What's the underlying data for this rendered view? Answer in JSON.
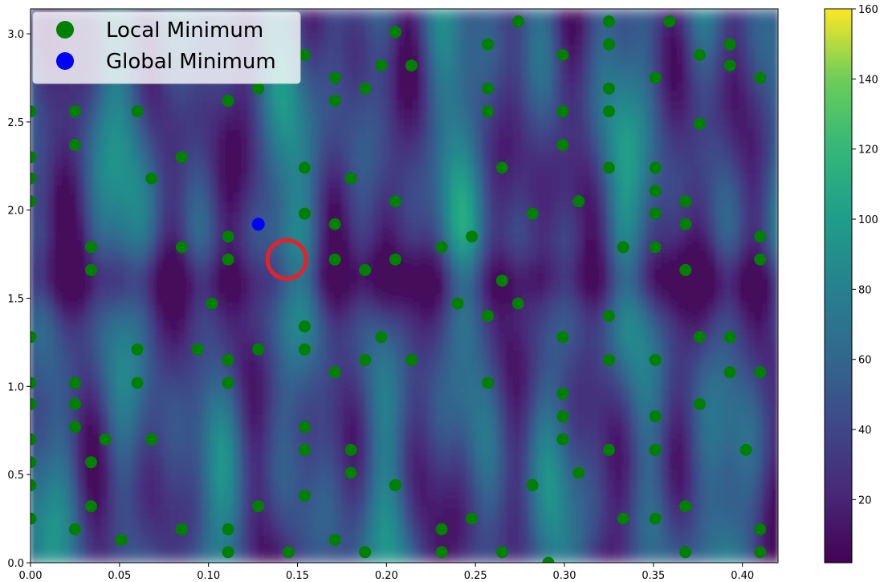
{
  "chart_data": {
    "type": "heatmap",
    "title": "",
    "xlabel": "",
    "ylabel": "",
    "xlim": [
      0.0,
      0.42
    ],
    "ylim": [
      0.0,
      3.1416
    ],
    "x_ticks": [
      "0.00",
      "0.05",
      "0.10",
      "0.15",
      "0.20",
      "0.25",
      "0.30",
      "0.35",
      "0.40"
    ],
    "y_ticks": [
      "0.0",
      "0.5",
      "1.0",
      "1.5",
      "2.0",
      "2.5",
      "3.0"
    ],
    "colorbar": {
      "colormap": "viridis",
      "range": [
        2,
        160
      ],
      "ticks": [
        "20",
        "40",
        "60",
        "80",
        "100",
        "120",
        "140",
        "160"
      ]
    },
    "grid": false,
    "legend": {
      "placement": "top-left",
      "entries": [
        {
          "label": "Local Minimum",
          "color": "#008000"
        },
        {
          "label": "Global Minimum",
          "color": "#0000ff"
        }
      ]
    },
    "series": [
      {
        "name": "Local Minimum",
        "color": "#008000",
        "points": [
          [
            0.0,
            2.56
          ],
          [
            0.0,
            2.3
          ],
          [
            0.0,
            2.18
          ],
          [
            0.0,
            2.05
          ],
          [
            0.0,
            1.28
          ],
          [
            0.0,
            1.02
          ],
          [
            0.0,
            0.9
          ],
          [
            0.0,
            0.7
          ],
          [
            0.0,
            0.57
          ],
          [
            0.0,
            0.44
          ],
          [
            0.0,
            0.25
          ],
          [
            0.025,
            2.56
          ],
          [
            0.025,
            2.37
          ],
          [
            0.025,
            1.02
          ],
          [
            0.025,
            0.9
          ],
          [
            0.025,
            0.77
          ],
          [
            0.025,
            0.19
          ],
          [
            0.034,
            1.79
          ],
          [
            0.034,
            1.66
          ],
          [
            0.034,
            0.57
          ],
          [
            0.034,
            0.32
          ],
          [
            0.042,
            0.7
          ],
          [
            0.051,
            0.13
          ],
          [
            0.06,
            2.56
          ],
          [
            0.06,
            1.21
          ],
          [
            0.06,
            1.02
          ],
          [
            0.068,
            2.18
          ],
          [
            0.068,
            0.7
          ],
          [
            0.085,
            2.3
          ],
          [
            0.085,
            1.79
          ],
          [
            0.085,
            0.19
          ],
          [
            0.094,
            1.21
          ],
          [
            0.102,
            1.47
          ],
          [
            0.111,
            2.62
          ],
          [
            0.111,
            1.85
          ],
          [
            0.111,
            1.72
          ],
          [
            0.111,
            1.15
          ],
          [
            0.111,
            1.02
          ],
          [
            0.111,
            0.19
          ],
          [
            0.111,
            0.06
          ],
          [
            0.128,
            2.69
          ],
          [
            0.128,
            1.21
          ],
          [
            0.128,
            0.32
          ],
          [
            0.145,
            0.06
          ],
          [
            0.154,
            2.88
          ],
          [
            0.154,
            2.24
          ],
          [
            0.154,
            1.98
          ],
          [
            0.154,
            1.34
          ],
          [
            0.154,
            1.21
          ],
          [
            0.154,
            0.77
          ],
          [
            0.154,
            0.64
          ],
          [
            0.154,
            0.38
          ],
          [
            0.171,
            2.75
          ],
          [
            0.171,
            2.62
          ],
          [
            0.171,
            1.92
          ],
          [
            0.171,
            1.72
          ],
          [
            0.171,
            1.08
          ],
          [
            0.171,
            0.13
          ],
          [
            0.18,
            2.18
          ],
          [
            0.18,
            0.64
          ],
          [
            0.18,
            0.51
          ],
          [
            0.188,
            2.69
          ],
          [
            0.188,
            1.66
          ],
          [
            0.188,
            1.15
          ],
          [
            0.188,
            0.06
          ],
          [
            0.197,
            2.82
          ],
          [
            0.197,
            1.28
          ],
          [
            0.205,
            3.01
          ],
          [
            0.205,
            2.05
          ],
          [
            0.205,
            1.72
          ],
          [
            0.205,
            0.44
          ],
          [
            0.214,
            2.82
          ],
          [
            0.214,
            1.15
          ],
          [
            0.231,
            1.79
          ],
          [
            0.231,
            0.19
          ],
          [
            0.231,
            0.06
          ],
          [
            0.24,
            1.47
          ],
          [
            0.248,
            1.85
          ],
          [
            0.248,
            0.25
          ],
          [
            0.257,
            2.94
          ],
          [
            0.257,
            2.69
          ],
          [
            0.257,
            2.56
          ],
          [
            0.257,
            1.4
          ],
          [
            0.257,
            1.02
          ],
          [
            0.265,
            2.24
          ],
          [
            0.265,
            1.6
          ],
          [
            0.265,
            0.06
          ],
          [
            0.274,
            3.07
          ],
          [
            0.274,
            1.47
          ],
          [
            0.282,
            1.98
          ],
          [
            0.282,
            0.44
          ],
          [
            0.291,
            0.0
          ],
          [
            0.299,
            2.88
          ],
          [
            0.299,
            2.56
          ],
          [
            0.299,
            2.37
          ],
          [
            0.299,
            1.28
          ],
          [
            0.299,
            0.96
          ],
          [
            0.299,
            0.83
          ],
          [
            0.299,
            0.7
          ],
          [
            0.308,
            2.05
          ],
          [
            0.308,
            0.51
          ],
          [
            0.325,
            3.07
          ],
          [
            0.325,
            2.94
          ],
          [
            0.325,
            2.69
          ],
          [
            0.325,
            2.56
          ],
          [
            0.325,
            2.24
          ],
          [
            0.325,
            1.4
          ],
          [
            0.325,
            1.15
          ],
          [
            0.325,
            0.64
          ],
          [
            0.333,
            1.79
          ],
          [
            0.333,
            0.25
          ],
          [
            0.351,
            2.75
          ],
          [
            0.351,
            2.24
          ],
          [
            0.351,
            2.11
          ],
          [
            0.351,
            1.98
          ],
          [
            0.351,
            1.79
          ],
          [
            0.351,
            1.15
          ],
          [
            0.351,
            0.83
          ],
          [
            0.351,
            0.64
          ],
          [
            0.351,
            0.25
          ],
          [
            0.359,
            3.07
          ],
          [
            0.368,
            2.05
          ],
          [
            0.368,
            1.92
          ],
          [
            0.368,
            1.66
          ],
          [
            0.368,
            0.32
          ],
          [
            0.368,
            0.06
          ],
          [
            0.376,
            2.88
          ],
          [
            0.376,
            2.49
          ],
          [
            0.376,
            1.28
          ],
          [
            0.376,
            0.9
          ],
          [
            0.393,
            2.94
          ],
          [
            0.393,
            2.82
          ],
          [
            0.393,
            1.28
          ],
          [
            0.393,
            1.08
          ],
          [
            0.402,
            0.64
          ],
          [
            0.41,
            2.75
          ],
          [
            0.41,
            1.85
          ],
          [
            0.41,
            1.72
          ],
          [
            0.41,
            1.08
          ],
          [
            0.41,
            0.19
          ],
          [
            0.41,
            0.06
          ]
        ]
      },
      {
        "name": "Global Minimum",
        "color": "#0000ff",
        "points": [
          [
            0.128,
            1.92
          ]
        ]
      }
    ],
    "annotations": [
      {
        "shape": "circle",
        "color": "#e8202a",
        "center": [
          0.144,
          1.72
        ]
      }
    ]
  }
}
